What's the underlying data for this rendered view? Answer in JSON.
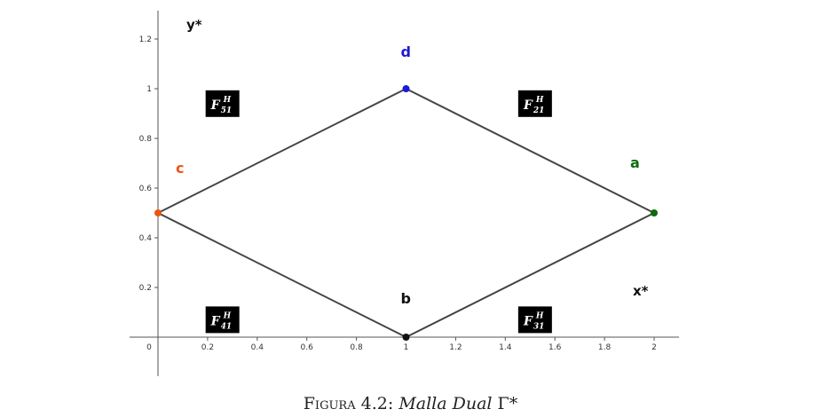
{
  "chart_data": {
    "type": "line",
    "axes": {
      "x": {
        "name": "x*",
        "range": [
          0,
          2.1
        ],
        "ticks": [
          0,
          0.2,
          0.4,
          0.6,
          0.8,
          1,
          1.2,
          1.4,
          1.6,
          1.8,
          2
        ],
        "tick_labels": [
          "0",
          "0.2",
          "0.4",
          "0.6",
          "0.8",
          "1",
          "1.2",
          "1.4",
          "1.6",
          "1.8",
          "2"
        ]
      },
      "y": {
        "name": "y*",
        "range": [
          0,
          1.3
        ],
        "ticks": [
          0.2,
          0.4,
          0.6,
          0.8,
          1,
          1.2
        ],
        "tick_labels": [
          "0.2",
          "0.4",
          "0.6",
          "0.8",
          "1",
          "1.2"
        ]
      }
    },
    "grid": false,
    "points": [
      {
        "id": "a",
        "label": "a",
        "x": 2,
        "y": 0.5,
        "color": "#0b6b0b"
      },
      {
        "id": "b",
        "label": "b",
        "x": 1,
        "y": 0,
        "color": "#111111"
      },
      {
        "id": "c",
        "label": "c",
        "x": 0,
        "y": 0.5,
        "color": "#ee5511"
      },
      {
        "id": "d",
        "label": "d",
        "x": 1,
        "y": 1,
        "color": "#1a1ad6"
      }
    ],
    "edges": [
      [
        "d",
        "a"
      ],
      [
        "a",
        "b"
      ],
      [
        "b",
        "c"
      ],
      [
        "c",
        "d"
      ]
    ],
    "regions": [
      {
        "id": "F51",
        "base": "F",
        "sup": "H",
        "sub": "51",
        "x": 0.26,
        "y": 0.94
      },
      {
        "id": "F21",
        "base": "F",
        "sup": "H",
        "sub": "21",
        "x": 1.52,
        "y": 0.94
      },
      {
        "id": "F41",
        "base": "F",
        "sup": "H",
        "sub": "41",
        "x": 0.26,
        "y": 0.07
      },
      {
        "id": "F31",
        "base": "F",
        "sup": "H",
        "sub": "31",
        "x": 1.52,
        "y": 0.07
      }
    ],
    "colors": {
      "edge": "#444444",
      "axis": "#555555",
      "badge_bg": "#000000"
    }
  },
  "caption": {
    "figure_word": "Figura",
    "number": "4.2:",
    "title": "Malla Dual",
    "symbol": "Γ*"
  }
}
